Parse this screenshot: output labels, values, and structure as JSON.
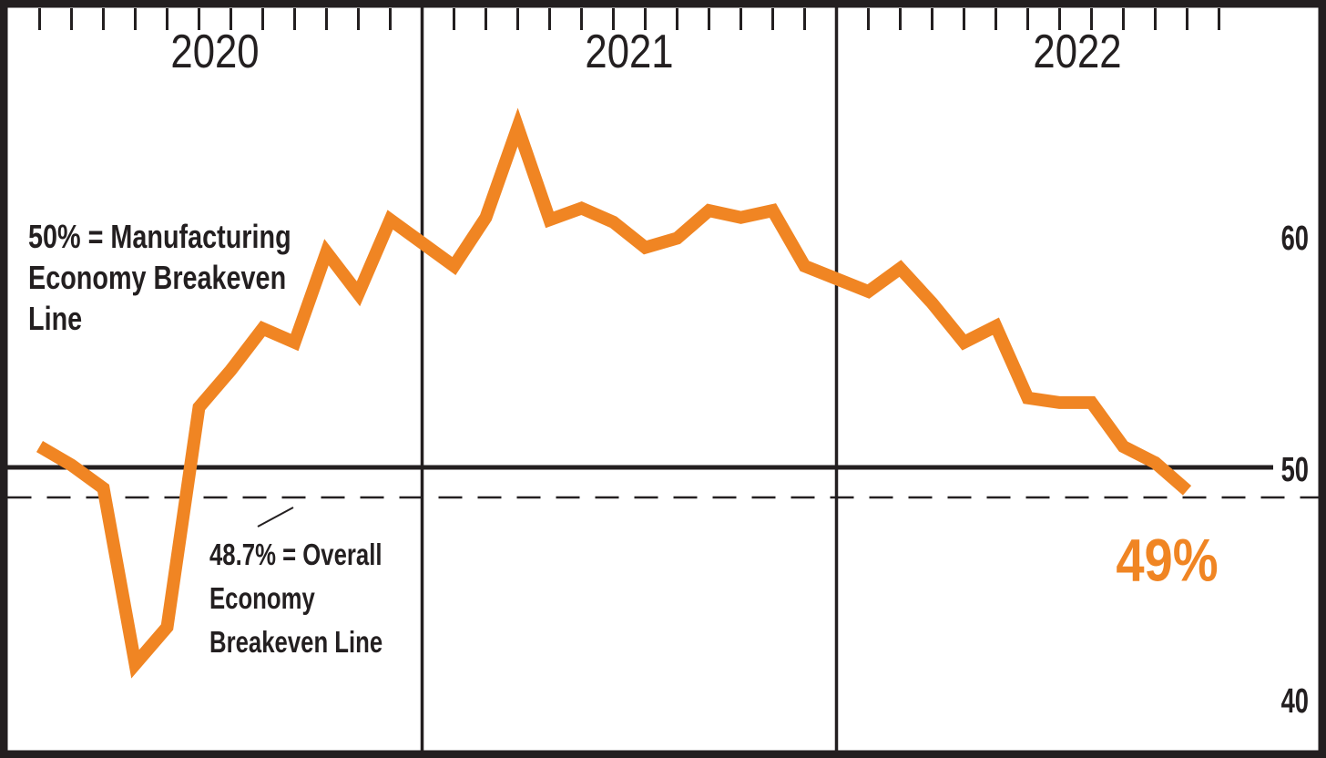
{
  "chart_data": {
    "type": "line",
    "line_color": "#F08523",
    "months_per_year": 12,
    "years": [
      {
        "label": "2020",
        "values": [
          50.9,
          50.1,
          49.1,
          41.5,
          43.1,
          52.6,
          54.2,
          56.0,
          55.4,
          59.3,
          57.5,
          60.7
        ]
      },
      {
        "label": "2021",
        "values": [
          58.7,
          60.8,
          64.7,
          60.7,
          61.2,
          60.6,
          59.5,
          59.9,
          61.1,
          60.8,
          61.1,
          58.7
        ]
      },
      {
        "label": "2022",
        "values": [
          57.6,
          58.6,
          57.1,
          55.4,
          56.1,
          53.0,
          52.8,
          52.8,
          50.9,
          50.2,
          49.0
        ]
      }
    ],
    "yaxis": {
      "side": "right",
      "ticks": [
        "60",
        "50",
        "40"
      ],
      "tick_values": [
        60,
        50,
        40
      ],
      "implied_range": [
        37.8,
        69.8
      ],
      "grid": "off"
    },
    "reference_lines": [
      {
        "value": 50,
        "style": "solid",
        "meaning": "Manufacturing Economy Breakeven Line"
      },
      {
        "value": 48.7,
        "style": "dashed",
        "meaning": "Overall Economy Breakeven Line"
      }
    ],
    "end_point_label": "49%",
    "legend": "none",
    "title": ""
  },
  "annotations": {
    "manufacturing_breakeven": {
      "lines": [
        "50% = Manufacturing",
        "Economy Breakeven",
        "Line"
      ]
    },
    "overall_breakeven": {
      "lines": [
        "48.7% = Overall",
        "Economy",
        "Breakeven Line"
      ]
    },
    "end_value": "49%"
  },
  "colors": {
    "line_orange": "#F08523",
    "ink_black": "#231F20",
    "background": "#FFFFFF"
  }
}
